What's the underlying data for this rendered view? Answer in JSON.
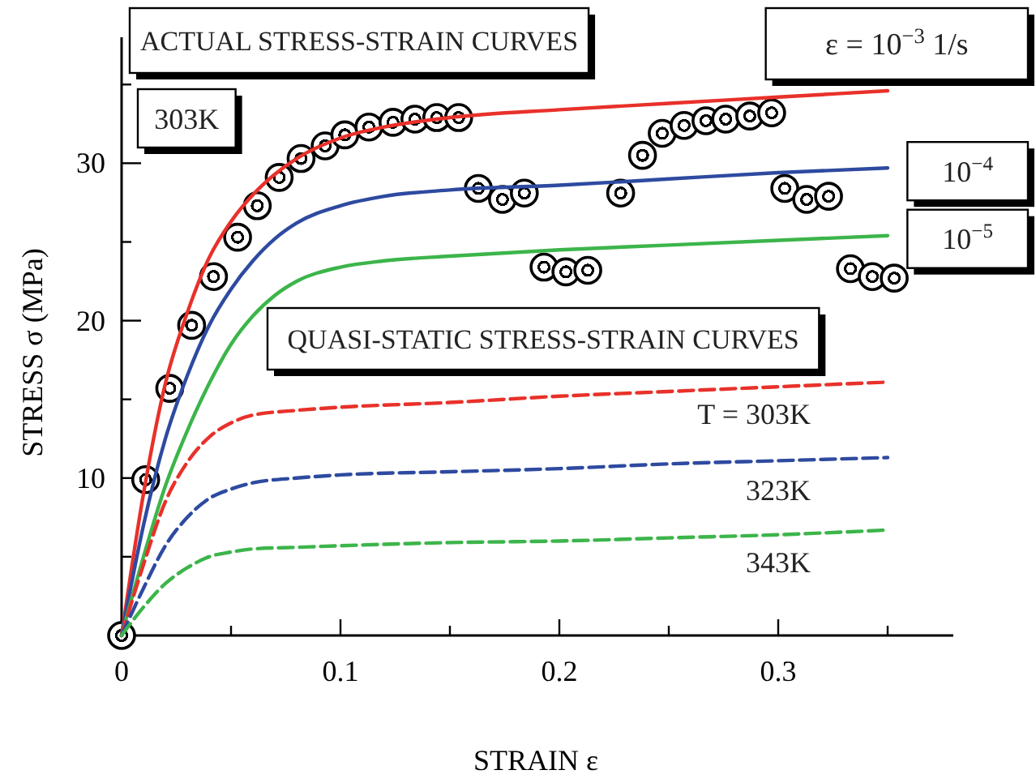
{
  "chart_data": {
    "type": "line",
    "xlabel": "STRAIN ε",
    "ylabel": "STRESS σ (MPa)",
    "xlim": [
      0,
      0.38
    ],
    "ylim": [
      0,
      38
    ],
    "xticks": [
      0,
      {
        "value": 0.05,
        "label": null
      },
      0.1,
      {
        "value": 0.15,
        "label": null
      },
      0.2,
      {
        "value": 0.25,
        "label": null
      },
      0.3,
      {
        "value": 0.35,
        "label": null
      }
    ],
    "yticks": [
      {
        "value": 0,
        "label": null
      },
      {
        "value": 5,
        "label": null
      },
      10,
      {
        "value": 15,
        "label": null
      },
      20,
      {
        "value": 25,
        "label": null
      },
      30,
      {
        "value": 35,
        "label": null
      }
    ],
    "annotations": [
      "ACTUAL STRESS-STRAIN CURVES",
      "303K",
      "QUASI-STATIC STRESS-STRAIN CURVES"
    ],
    "series": [
      {
        "name": "ε = 10$^{−3}$ 1/s",
        "color": "#e8312a",
        "line_style": "solid",
        "marker": "none",
        "x": [
          0,
          0.01,
          0.02,
          0.03,
          0.04,
          0.05,
          0.06,
          0.07,
          0.08,
          0.1,
          0.12,
          0.15,
          0.2,
          0.25,
          0.3,
          0.35
        ],
        "values": [
          0,
          9,
          16,
          20.5,
          24,
          26.3,
          28,
          29.3,
          30.3,
          31.6,
          32.3,
          32.9,
          33.4,
          33.8,
          34.2,
          34.6
        ]
      },
      {
        "name": "10$^{−4}$",
        "color": "#2e4aa0",
        "line_style": "solid",
        "marker": "none",
        "x": [
          0,
          0.01,
          0.02,
          0.03,
          0.04,
          0.05,
          0.06,
          0.07,
          0.08,
          0.1,
          0.12,
          0.15,
          0.2,
          0.25,
          0.3,
          0.35
        ],
        "values": [
          0,
          7,
          12.5,
          16.5,
          19.7,
          22,
          23.8,
          25.2,
          26.2,
          27.3,
          27.9,
          28.3,
          28.6,
          29,
          29.4,
          29.7
        ]
      },
      {
        "name": "10$^{−5}$",
        "color": "#3cb54a",
        "line_style": "solid",
        "marker": "none",
        "x": [
          0,
          0.01,
          0.02,
          0.03,
          0.04,
          0.05,
          0.06,
          0.07,
          0.08,
          0.1,
          0.12,
          0.15,
          0.2,
          0.25,
          0.3,
          0.35
        ],
        "values": [
          0,
          5,
          9.5,
          13,
          16,
          18.5,
          20.3,
          21.6,
          22.5,
          23.4,
          23.8,
          24.1,
          24.5,
          24.8,
          25.1,
          25.4
        ]
      },
      {
        "name": "T = 303K",
        "color": "#e8312a",
        "line_style": "dashed",
        "marker": "none",
        "x": [
          0,
          0.01,
          0.02,
          0.03,
          0.04,
          0.05,
          0.06,
          0.08,
          0.1,
          0.15,
          0.2,
          0.25,
          0.3,
          0.35
        ],
        "values": [
          0,
          4.5,
          8.5,
          11,
          12.6,
          13.5,
          14,
          14.3,
          14.5,
          14.8,
          15.2,
          15.5,
          15.8,
          16.1
        ]
      },
      {
        "name": "323K",
        "color": "#2e4aa0",
        "line_style": "dashed",
        "marker": "none",
        "x": [
          0,
          0.01,
          0.02,
          0.03,
          0.04,
          0.05,
          0.06,
          0.08,
          0.1,
          0.15,
          0.2,
          0.25,
          0.3,
          0.35
        ],
        "values": [
          0,
          3,
          5.7,
          7.5,
          8.7,
          9.3,
          9.7,
          10,
          10.2,
          10.4,
          10.6,
          10.9,
          11.1,
          11.3
        ]
      },
      {
        "name": "343K",
        "color": "#3cb54a",
        "line_style": "dashed",
        "marker": "none",
        "x": [
          0,
          0.01,
          0.02,
          0.03,
          0.04,
          0.05,
          0.06,
          0.08,
          0.1,
          0.15,
          0.2,
          0.25,
          0.3,
          0.35
        ],
        "values": [
          0,
          1.8,
          3.3,
          4.3,
          5,
          5.3,
          5.5,
          5.6,
          5.7,
          5.9,
          6,
          6.2,
          6.4,
          6.7
        ]
      },
      {
        "type": "scatter",
        "color": "#000000",
        "marker": "circle",
        "x": [
          0,
          0.011,
          0.022,
          0.032,
          0.042,
          0.053,
          0.062,
          0.072,
          0.082,
          0.093,
          0.102,
          0.113,
          0.124,
          0.134,
          0.144,
          0.154,
          0.163,
          0.174,
          0.184,
          0.193,
          0.203,
          0.213,
          0.228,
          0.238,
          0.247,
          0.257,
          0.267,
          0.276,
          0.287,
          0.297,
          0.303,
          0.313,
          0.323,
          0.333,
          0.343,
          0.353
        ],
        "values": [
          0,
          9.9,
          15.7,
          19.7,
          22.8,
          25.3,
          27.3,
          29.1,
          30.3,
          31.1,
          31.8,
          32.3,
          32.6,
          32.8,
          32.9,
          32.9,
          28.4,
          27.7,
          28.1,
          23.4,
          23.1,
          23.2,
          28.1,
          30.5,
          31.9,
          32.4,
          32.7,
          32.8,
          33,
          33.2,
          28.4,
          27.7,
          27.9,
          23.3,
          22.8,
          22.7
        ]
      }
    ]
  }
}
